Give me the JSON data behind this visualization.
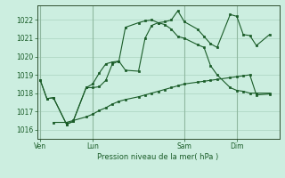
{
  "background_color": "#cceee0",
  "grid_color": "#aad4c0",
  "line_color": "#1a5c28",
  "xlabel_text": "Pression niveau de la mer( hPa )",
  "x_tick_labels": [
    "Ven",
    "Lun",
    "Sam",
    "Dim"
  ],
  "x_tick_positions": [
    0,
    8,
    22,
    30
  ],
  "ylim": [
    1015.5,
    1022.8
  ],
  "yticks": [
    1016,
    1017,
    1018,
    1019,
    1020,
    1021,
    1022
  ],
  "xlim": [
    -0.5,
    36.5
  ],
  "series1_x": [
    0,
    1,
    2,
    4,
    5,
    7,
    8,
    9,
    10,
    11,
    12,
    13,
    15,
    16,
    17,
    18,
    19,
    20,
    21,
    22,
    24,
    25,
    26,
    27,
    29,
    30,
    31,
    32,
    33,
    35
  ],
  "series1_y": [
    1018.7,
    1017.7,
    1017.75,
    1016.3,
    1016.45,
    1018.3,
    1018.3,
    1018.35,
    1018.7,
    1019.6,
    1019.75,
    1019.25,
    1019.2,
    1021.0,
    1021.7,
    1021.85,
    1021.9,
    1022.0,
    1022.5,
    1021.9,
    1021.5,
    1021.1,
    1020.7,
    1020.5,
    1022.3,
    1022.2,
    1021.2,
    1021.15,
    1020.6,
    1021.2
  ],
  "series2_x": [
    0,
    1,
    2,
    4,
    5,
    7,
    8,
    9,
    10,
    11,
    12,
    13,
    15,
    16,
    17,
    18,
    19,
    20,
    21,
    22,
    24,
    25,
    26,
    27,
    29,
    30,
    31,
    32,
    33,
    35
  ],
  "series2_y": [
    1018.7,
    1017.7,
    1017.75,
    1016.3,
    1016.45,
    1018.3,
    1018.5,
    1019.1,
    1019.6,
    1019.7,
    1019.75,
    1021.6,
    1021.85,
    1021.95,
    1022.0,
    1021.85,
    1021.75,
    1021.5,
    1021.1,
    1021.0,
    1020.65,
    1020.5,
    1019.5,
    1019.0,
    1018.3,
    1018.15,
    1018.1,
    1018.0,
    1018.0,
    1018.0
  ],
  "series3_x": [
    2,
    4,
    5,
    7,
    8,
    9,
    10,
    11,
    12,
    13,
    15,
    16,
    17,
    18,
    19,
    20,
    21,
    22,
    24,
    25,
    26,
    27,
    29,
    30,
    31,
    32,
    33,
    35
  ],
  "series3_y": [
    1016.4,
    1016.4,
    1016.5,
    1016.7,
    1016.85,
    1017.05,
    1017.2,
    1017.4,
    1017.55,
    1017.65,
    1017.8,
    1017.9,
    1018.0,
    1018.1,
    1018.2,
    1018.3,
    1018.4,
    1018.5,
    1018.6,
    1018.65,
    1018.7,
    1018.75,
    1018.85,
    1018.9,
    1018.95,
    1019.0,
    1017.9,
    1017.95
  ],
  "vlines_x": [
    0,
    8,
    22,
    30
  ],
  "total_x": 36
}
